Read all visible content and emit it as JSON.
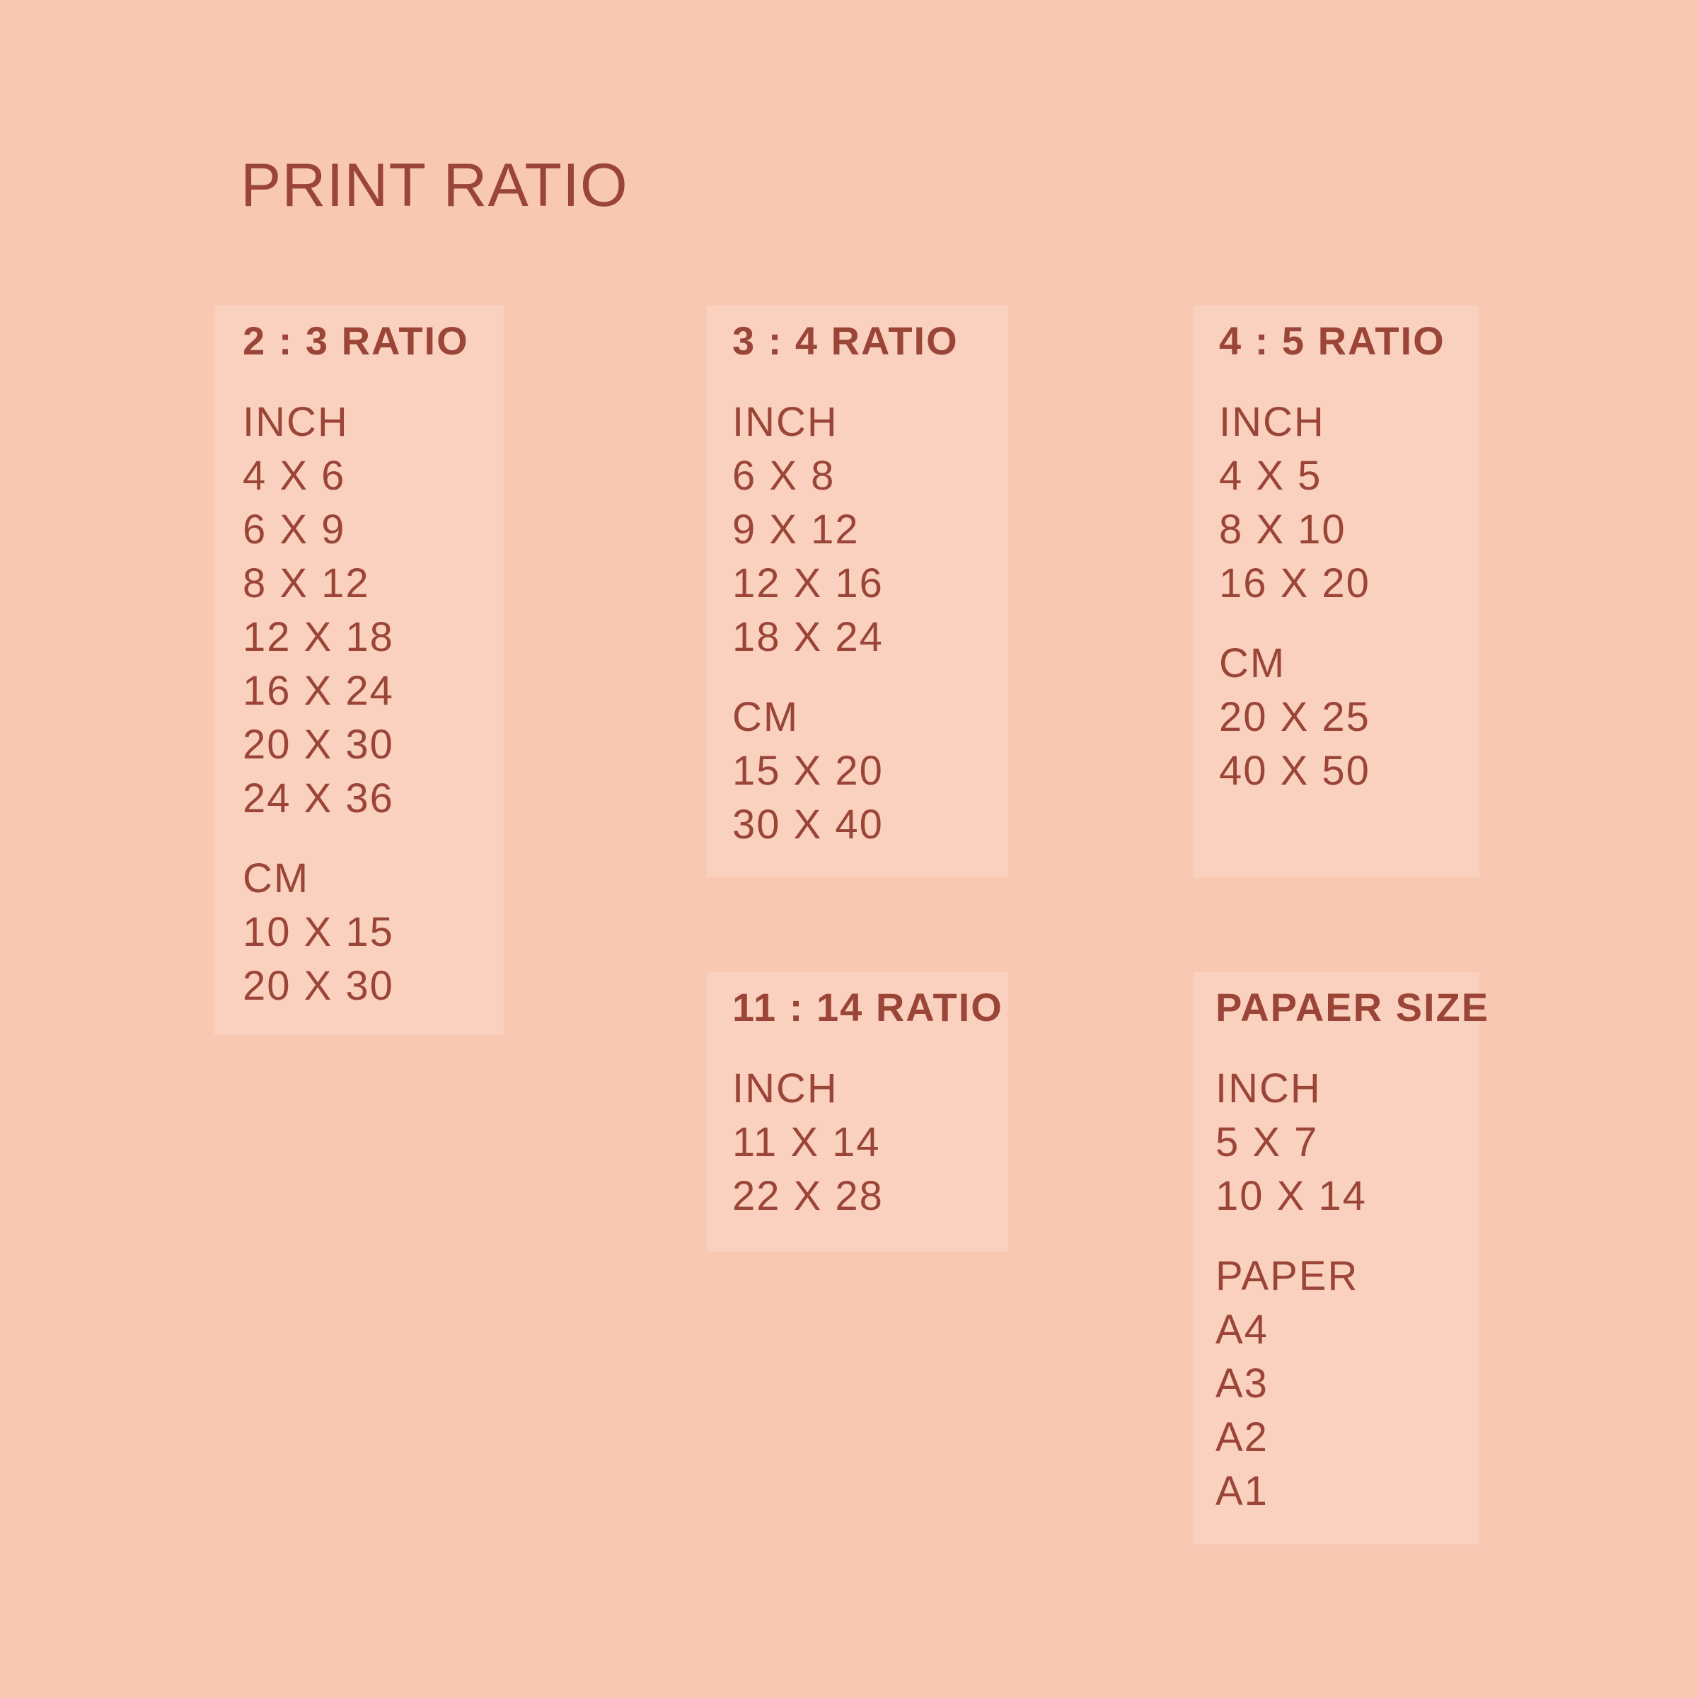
{
  "title": "PRINT RATIO",
  "colors": {
    "background": "#F9C8B2",
    "card": "#FAD1BE",
    "text": "#9A4538"
  },
  "cards": [
    {
      "heading": "2 : 3 RATIO",
      "groups": [
        {
          "label": "INCH",
          "items": [
            "4 X 6",
            "6 X 9",
            "8 X 12",
            "12 X 18",
            "16 X 24",
            "20 X 30",
            "24 X 36"
          ]
        },
        {
          "label": "CM",
          "items": [
            "10 X 15",
            "20 X 30"
          ]
        }
      ]
    },
    {
      "heading": "3 : 4 RATIO",
      "groups": [
        {
          "label": "INCH",
          "items": [
            "6 X 8",
            "9 X 12",
            "12 X 16",
            "18 X 24"
          ]
        },
        {
          "label": "CM",
          "items": [
            "15 X 20",
            "30 X 40"
          ]
        }
      ]
    },
    {
      "heading": "4 : 5 RATIO",
      "groups": [
        {
          "label": "INCH",
          "items": [
            "4 X 5",
            "8 X 10",
            "16 X 20"
          ]
        },
        {
          "label": "CM",
          "items": [
            "20 X 25",
            "40 X 50"
          ]
        }
      ]
    },
    {
      "heading": "11 : 14 RATIO",
      "groups": [
        {
          "label": "INCH",
          "items": [
            "11 X 14",
            "22 X 28"
          ]
        }
      ]
    },
    {
      "heading": "PAPAER SIZE",
      "groups": [
        {
          "label": "INCH",
          "items": [
            "5 X 7",
            "10 X 14"
          ]
        },
        {
          "label": "PAPER",
          "items": [
            "A4",
            "A3",
            "A2",
            "A1"
          ]
        }
      ]
    }
  ]
}
